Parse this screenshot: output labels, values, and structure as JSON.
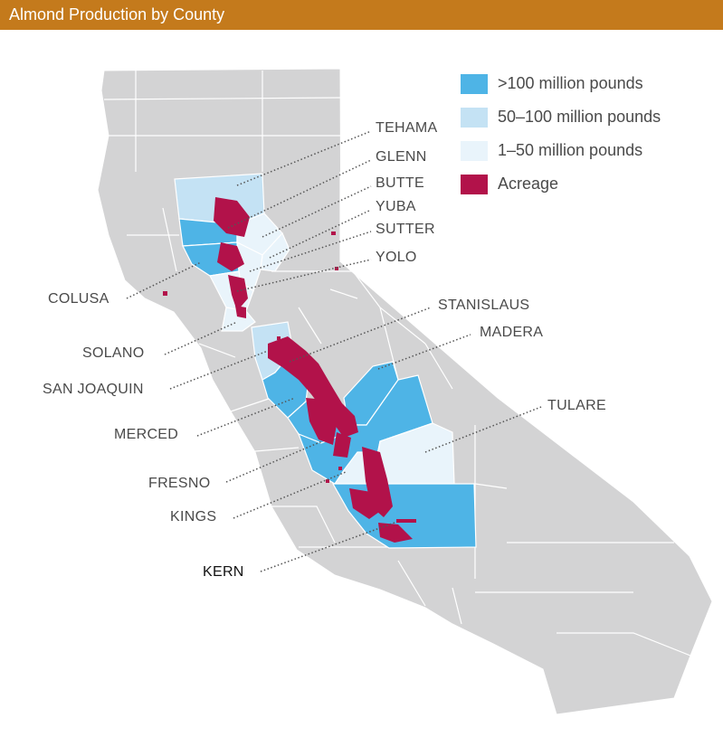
{
  "header": {
    "title": "Almond Production by County"
  },
  "legend": {
    "items": [
      {
        "label": ">100 million pounds",
        "color": "#4eb4e6"
      },
      {
        "label": "50–100 million pounds",
        "color": "#c4e2f4"
      },
      {
        "label": "1–50 million pounds",
        "color": "#e9f4fb"
      },
      {
        "label": "Acreage",
        "color": "#b2124a"
      }
    ]
  },
  "colors": {
    "state": "#d3d3d4",
    "county_border": "#ffffff",
    "header": "#c47a1c",
    "leader_line": "#555555"
  },
  "counties": [
    {
      "name": "TEHAMA",
      "category": "50–100 million pounds"
    },
    {
      "name": "GLENN",
      "category": ">100 million pounds"
    },
    {
      "name": "BUTTE",
      "category": "1–50 million pounds"
    },
    {
      "name": "YUBA",
      "category": "1–50 million pounds"
    },
    {
      "name": "SUTTER",
      "category": "1–50 million pounds"
    },
    {
      "name": "YOLO",
      "category": "1–50 million pounds"
    },
    {
      "name": "COLUSA",
      "category": ">100 million pounds"
    },
    {
      "name": "SOLANO",
      "category": "1–50 million pounds"
    },
    {
      "name": "SAN JOAQUIN",
      "category": "50–100 million pounds"
    },
    {
      "name": "STANISLAUS",
      "category": ">100 million pounds"
    },
    {
      "name": "MADERA",
      "category": ">100 million pounds"
    },
    {
      "name": "MERCED",
      "category": ">100 million pounds"
    },
    {
      "name": "TULARE",
      "category": "1–50 million pounds"
    },
    {
      "name": "FRESNO",
      "category": ">100 million pounds"
    },
    {
      "name": "KINGS",
      "category": "1–50 million pounds"
    },
    {
      "name": "KERN",
      "category": ">100 million pounds"
    }
  ]
}
